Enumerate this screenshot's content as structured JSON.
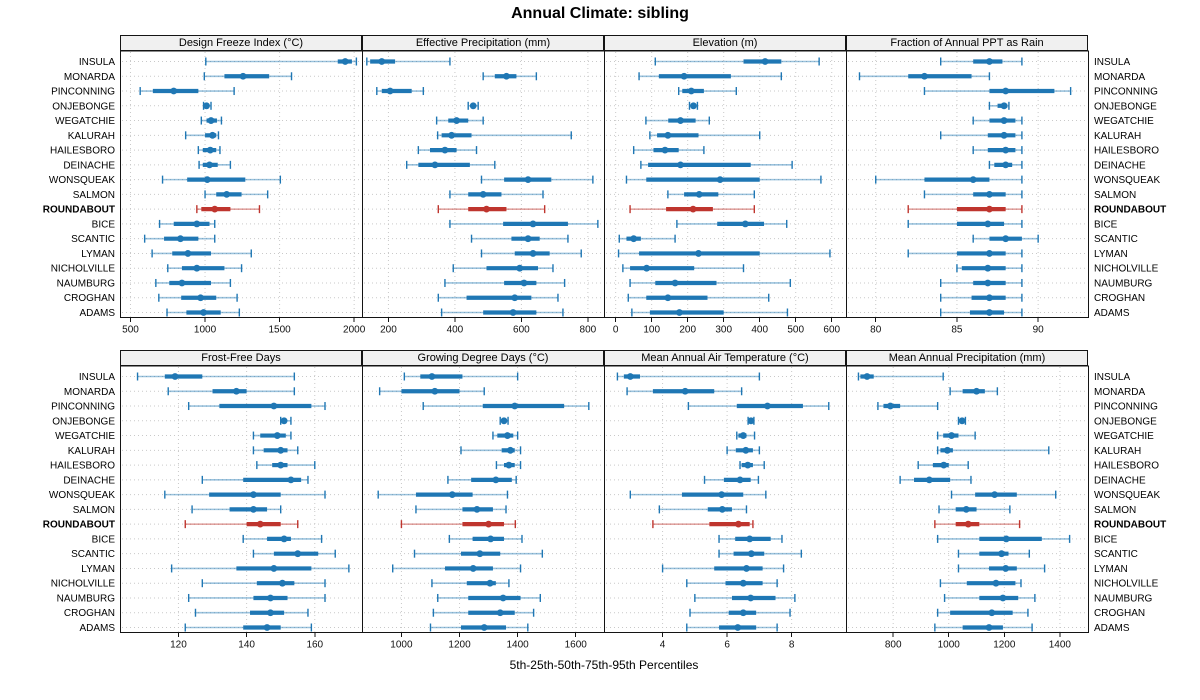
{
  "title": "Annual Climate: sibling",
  "footer": "5th-25th-50th-75th-95th Percentiles",
  "highlight_station": "ROUNDABOUT",
  "colors": {
    "series": "#1f77b4",
    "series_light": "rgba(31,119,180,0.45)",
    "highlight": "#bf352e",
    "highlight_light": "rgba(191,53,46,0.45)",
    "header_bg": "#f0f0f0",
    "grid": "#c9c9c9",
    "border": "#141414"
  },
  "chart_data": {
    "type": "trellis-dotplot-percentiles",
    "percentiles": [
      5,
      25,
      50,
      75,
      95
    ],
    "legend_note": "thin line = 5th-95th, thick bar = 25th-75th, dot = median",
    "rows": [
      "INSULA",
      "MONARDA",
      "PINCONNING",
      "ONJEBONGE",
      "WEGATCHIE",
      "KALURAH",
      "HAILESBORO",
      "DEINACHE",
      "WONSQUEAK",
      "SALMON",
      "ROUNDABOUT",
      "BICE",
      "SCANTIC",
      "LYMAN",
      "NICHOLVILLE",
      "NAUMBURG",
      "CROGHAN",
      "ADAMS"
    ],
    "panels": [
      {
        "title": "Design Freeze Index (°C)",
        "ticks": [
          500,
          1000,
          1500,
          2000
        ],
        "xlim": [
          433,
          2056
        ],
        "values": [
          [
            1005,
            1890,
            1940,
            1985,
            2015
          ],
          [
            995,
            1130,
            1255,
            1430,
            1580
          ],
          [
            565,
            650,
            790,
            955,
            1195
          ],
          [
            990,
            1000,
            1010,
            1020,
            1040
          ],
          [
            975,
            1010,
            1040,
            1080,
            1110
          ],
          [
            870,
            1000,
            1050,
            1075,
            1090
          ],
          [
            955,
            985,
            1035,
            1075,
            1100
          ],
          [
            960,
            985,
            1030,
            1085,
            1170
          ],
          [
            715,
            880,
            1015,
            1270,
            1505
          ],
          [
            1000,
            1075,
            1145,
            1245,
            1420
          ],
          [
            945,
            975,
            1065,
            1170,
            1365
          ],
          [
            695,
            790,
            945,
            1030,
            1065
          ],
          [
            595,
            725,
            835,
            955,
            1065
          ],
          [
            645,
            780,
            885,
            1040,
            1310
          ],
          [
            750,
            845,
            945,
            1130,
            1245
          ],
          [
            670,
            760,
            845,
            1040,
            1170
          ],
          [
            690,
            840,
            970,
            1075,
            1215
          ],
          [
            745,
            875,
            990,
            1105,
            1230
          ]
        ]
      },
      {
        "title": "Effective Precipitation (mm)",
        "ticks": [
          200,
          400,
          600,
          800
        ],
        "xlim": [
          122,
          850
        ],
        "values": [
          [
            135,
            145,
            180,
            220,
            385
          ],
          [
            485,
            520,
            555,
            585,
            645
          ],
          [
            165,
            180,
            205,
            270,
            305
          ],
          [
            440,
            450,
            455,
            460,
            470
          ],
          [
            345,
            380,
            405,
            440,
            485
          ],
          [
            348,
            360,
            390,
            450,
            750
          ],
          [
            290,
            325,
            370,
            405,
            465
          ],
          [
            255,
            290,
            340,
            445,
            520
          ],
          [
            480,
            548,
            620,
            690,
            815
          ],
          [
            385,
            440,
            485,
            540,
            665
          ],
          [
            350,
            440,
            495,
            555,
            670
          ],
          [
            385,
            545,
            635,
            740,
            830
          ],
          [
            450,
            570,
            620,
            655,
            740
          ],
          [
            480,
            580,
            635,
            685,
            780
          ],
          [
            395,
            495,
            595,
            650,
            695
          ],
          [
            370,
            548,
            608,
            645,
            730
          ],
          [
            350,
            435,
            580,
            630,
            710
          ],
          [
            360,
            485,
            575,
            645,
            725
          ]
        ]
      },
      {
        "title": "Elevation (m)",
        "ticks": [
          0,
          100,
          200,
          300,
          400,
          500,
          600
        ],
        "xlim": [
          -31,
          641
        ],
        "values": [
          [
            110,
            355,
            415,
            460,
            565
          ],
          [
            65,
            120,
            190,
            320,
            460
          ],
          [
            175,
            185,
            210,
            245,
            335
          ],
          [
            205,
            212,
            216,
            221,
            227
          ],
          [
            84,
            146,
            180,
            222,
            260
          ],
          [
            95,
            115,
            145,
            230,
            400
          ],
          [
            50,
            105,
            137,
            175,
            245
          ],
          [
            70,
            90,
            180,
            375,
            490
          ],
          [
            30,
            85,
            290,
            400,
            570
          ],
          [
            145,
            190,
            232,
            285,
            385
          ],
          [
            40,
            140,
            215,
            270,
            385
          ],
          [
            170,
            282,
            360,
            412,
            475
          ],
          [
            10,
            30,
            50,
            70,
            165
          ],
          [
            8,
            65,
            230,
            400,
            595
          ],
          [
            20,
            40,
            86,
            218,
            355
          ],
          [
            40,
            110,
            165,
            280,
            485
          ],
          [
            35,
            85,
            145,
            255,
            425
          ],
          [
            45,
            95,
            177,
            300,
            477
          ]
        ]
      },
      {
        "title": "Fraction of Annual PPT as Rain",
        "ticks": [
          80,
          85,
          90
        ],
        "xlim": [
          78.2,
          93.1
        ],
        "values": [
          [
            84,
            86,
            87,
            87.8,
            89
          ],
          [
            79,
            82,
            83,
            85.9,
            87
          ],
          [
            83,
            87,
            88,
            91,
            92
          ],
          [
            87,
            87.5,
            87.9,
            88.1,
            88.2
          ],
          [
            86,
            87,
            87.9,
            88.6,
            89
          ],
          [
            84,
            86.9,
            87.9,
            88.6,
            89
          ],
          [
            86,
            86.9,
            88,
            88.6,
            89
          ],
          [
            87,
            87.3,
            88,
            88.4,
            89
          ],
          [
            80,
            83,
            86,
            87,
            89
          ],
          [
            83,
            86,
            87,
            88,
            89
          ],
          [
            82,
            85,
            87,
            88,
            89
          ],
          [
            82,
            85,
            86.9,
            87.9,
            89
          ],
          [
            86,
            87,
            88,
            89,
            90
          ],
          [
            82,
            85,
            87,
            88,
            89
          ],
          [
            85,
            85.3,
            86.9,
            88,
            89
          ],
          [
            84,
            86,
            86.9,
            88,
            89
          ],
          [
            84,
            85.9,
            87,
            88,
            89
          ],
          [
            84,
            85.8,
            87,
            87.9,
            89
          ]
        ]
      },
      {
        "title": "Frost-Free Days",
        "ticks": [
          120,
          140,
          160
        ],
        "xlim": [
          103,
          174
        ],
        "values": [
          [
            108,
            116,
            119,
            127,
            154
          ],
          [
            117,
            130,
            137,
            140,
            154
          ],
          [
            123,
            132,
            148,
            159,
            163
          ],
          [
            150,
            150.5,
            151,
            151.5,
            153
          ],
          [
            142,
            144,
            149,
            151.5,
            153
          ],
          [
            142,
            145,
            150,
            152,
            155
          ],
          [
            143,
            147.5,
            150,
            152,
            160
          ],
          [
            127,
            139,
            153,
            156,
            158
          ],
          [
            116,
            129,
            142,
            150,
            163
          ],
          [
            124,
            135,
            142,
            146,
            150
          ],
          [
            122,
            140,
            144,
            150,
            155
          ],
          [
            139,
            146,
            151,
            153,
            162
          ],
          [
            142,
            148,
            155,
            161,
            166
          ],
          [
            118,
            137,
            148,
            159,
            170
          ],
          [
            127,
            143,
            150.5,
            154,
            163
          ],
          [
            123,
            142,
            147,
            152,
            163
          ],
          [
            125,
            141,
            147,
            151,
            158
          ],
          [
            122,
            139,
            146,
            150,
            159
          ]
        ]
      },
      {
        "title": "Growing Degree Days (°C)",
        "ticks": [
          1000,
          1200,
          1400,
          1600
        ],
        "xlim": [
          866,
          1699
        ],
        "values": [
          [
            1010,
            1065,
            1105,
            1210,
            1400
          ],
          [
            925,
            1000,
            1115,
            1200,
            1285
          ],
          [
            1075,
            1280,
            1390,
            1560,
            1645
          ],
          [
            1340,
            1347,
            1353,
            1360,
            1367
          ],
          [
            1315,
            1330,
            1365,
            1385,
            1400
          ],
          [
            1205,
            1345,
            1375,
            1390,
            1410
          ],
          [
            1327,
            1353,
            1370,
            1390,
            1410
          ],
          [
            1160,
            1240,
            1325,
            1380,
            1395
          ],
          [
            920,
            1050,
            1175,
            1245,
            1365
          ],
          [
            1050,
            1210,
            1260,
            1315,
            1360
          ],
          [
            1000,
            1210,
            1300,
            1353,
            1392
          ],
          [
            1165,
            1245,
            1307,
            1353,
            1415
          ],
          [
            1045,
            1205,
            1270,
            1340,
            1485
          ],
          [
            970,
            1150,
            1247,
            1315,
            1410
          ],
          [
            1105,
            1225,
            1305,
            1325,
            1370
          ],
          [
            1125,
            1230,
            1350,
            1410,
            1478
          ],
          [
            1110,
            1230,
            1340,
            1390,
            1455
          ],
          [
            1100,
            1205,
            1285,
            1360,
            1435
          ]
        ]
      },
      {
        "title": "Mean Annual Air Temperature (°C)",
        "ticks": [
          4,
          6,
          8
        ],
        "xlim": [
          2.2,
          9.7
        ],
        "values": [
          [
            2.6,
            2.8,
            3.0,
            3.3,
            7.0
          ],
          [
            2.9,
            3.7,
            4.7,
            5.6,
            6.45
          ],
          [
            4.8,
            6.3,
            7.25,
            8.35,
            9.15
          ],
          [
            6.65,
            6.7,
            6.74,
            6.78,
            6.83
          ],
          [
            6.3,
            6.35,
            6.5,
            6.6,
            6.85
          ],
          [
            6.0,
            6.27,
            6.58,
            6.8,
            7.0
          ],
          [
            6.4,
            6.45,
            6.64,
            6.8,
            7.15
          ],
          [
            5.3,
            5.9,
            6.4,
            6.73,
            6.97
          ],
          [
            3.0,
            4.6,
            5.83,
            6.5,
            7.2
          ],
          [
            3.9,
            5.4,
            5.85,
            6.15,
            6.6
          ],
          [
            3.7,
            5.45,
            6.35,
            6.7,
            6.8
          ],
          [
            5.75,
            6.25,
            6.7,
            7.35,
            7.7
          ],
          [
            5.75,
            6.2,
            6.75,
            7.15,
            8.3
          ],
          [
            4.0,
            5.6,
            6.6,
            7.1,
            7.75
          ],
          [
            4.75,
            5.95,
            6.5,
            7.1,
            7.55
          ],
          [
            5.0,
            6.15,
            6.73,
            7.5,
            8.1
          ],
          [
            4.85,
            6.05,
            6.5,
            6.9,
            7.95
          ],
          [
            4.75,
            5.75,
            6.33,
            6.9,
            7.55
          ]
        ]
      },
      {
        "title": "Mean Annual Precipitation (mm)",
        "ticks": [
          800,
          1000,
          1200,
          1400
        ],
        "xlim": [
          632,
          1503
        ],
        "values": [
          [
            675,
            682,
            706,
            730,
            980
          ],
          [
            1005,
            1050,
            1100,
            1130,
            1175
          ],
          [
            745,
            765,
            790,
            825,
            960
          ],
          [
            1035,
            1041,
            1048,
            1054,
            1060
          ],
          [
            960,
            980,
            1010,
            1035,
            1095
          ],
          [
            960,
            970,
            995,
            1015,
            1360
          ],
          [
            890,
            943,
            982,
            1000,
            1070
          ],
          [
            825,
            875,
            930,
            1005,
            1080
          ],
          [
            1010,
            1095,
            1165,
            1245,
            1385
          ],
          [
            965,
            1025,
            1063,
            1100,
            1220
          ],
          [
            950,
            1025,
            1070,
            1110,
            1255
          ],
          [
            960,
            1110,
            1207,
            1335,
            1435
          ],
          [
            1035,
            1110,
            1190,
            1215,
            1290
          ],
          [
            1035,
            1145,
            1205,
            1245,
            1345
          ],
          [
            970,
            1065,
            1170,
            1240,
            1260
          ],
          [
            985,
            1110,
            1195,
            1250,
            1310
          ],
          [
            960,
            1005,
            1155,
            1230,
            1285
          ],
          [
            950,
            1050,
            1145,
            1195,
            1300
          ]
        ]
      }
    ]
  }
}
